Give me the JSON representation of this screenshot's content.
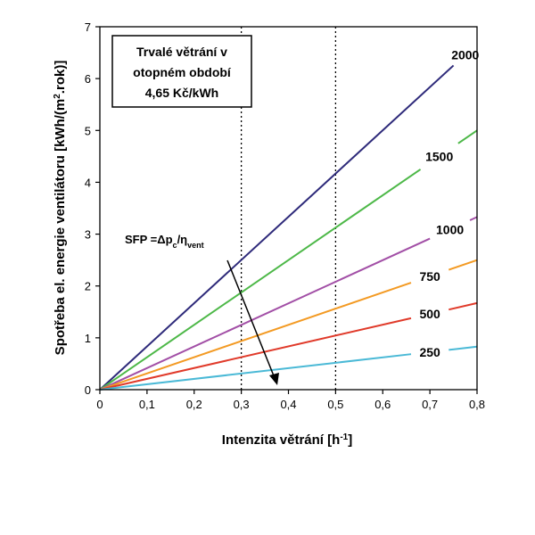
{
  "chart_data": {
    "type": "line",
    "title_box": [
      "Trvalé větrání v",
      "otopném období",
      "4,65 Kč/kWh"
    ],
    "xlabel": "Intenzita větrání [h",
    "xlabel_sup": "-1",
    "xlabel_end": "]",
    "ylabel_parts": [
      "Spotřeba el. energie ventilátoru [kWh/(m",
      "2",
      ".rok)]"
    ],
    "xlim": [
      0,
      0.8
    ],
    "ylim": [
      0,
      7
    ],
    "x_ticks": [
      "0",
      "0,1",
      "0,2",
      "0,3",
      "0,4",
      "0,5",
      "0,6",
      "0,7",
      "0,8"
    ],
    "x_tick_values": [
      0,
      0.1,
      0.2,
      0.3,
      0.4,
      0.5,
      0.6,
      0.7,
      0.8
    ],
    "y_ticks": [
      "0",
      "1",
      "2",
      "3",
      "4",
      "5",
      "6",
      "7"
    ],
    "y_tick_values": [
      0,
      1,
      2,
      3,
      4,
      5,
      6,
      7
    ],
    "vlines": [
      0.3,
      0.5
    ],
    "annotation": {
      "prefix": "SFP =Δp",
      "sub1": "c",
      "mid": "/η",
      "sub2": "vent"
    },
    "series": [
      {
        "name": "2000",
        "color": "#2e2a7a",
        "x": [
          0,
          0.8
        ],
        "y": [
          0,
          6.67
        ]
      },
      {
        "name": "1500",
        "color": "#4db848",
        "x": [
          0,
          0.8
        ],
        "y": [
          0,
          5.0
        ]
      },
      {
        "name": "1000",
        "color": "#a24fa6",
        "x": [
          0,
          0.8
        ],
        "y": [
          0,
          3.33
        ]
      },
      {
        "name": "750",
        "color": "#f39a23",
        "x": [
          0,
          0.8
        ],
        "y": [
          0,
          2.5
        ]
      },
      {
        "name": "500",
        "color": "#e03a2a",
        "x": [
          0,
          0.8
        ],
        "y": [
          0,
          1.67
        ]
      },
      {
        "name": "250",
        "color": "#4ab9d6",
        "x": [
          0,
          0.8
        ],
        "y": [
          0,
          0.83
        ]
      }
    ]
  }
}
